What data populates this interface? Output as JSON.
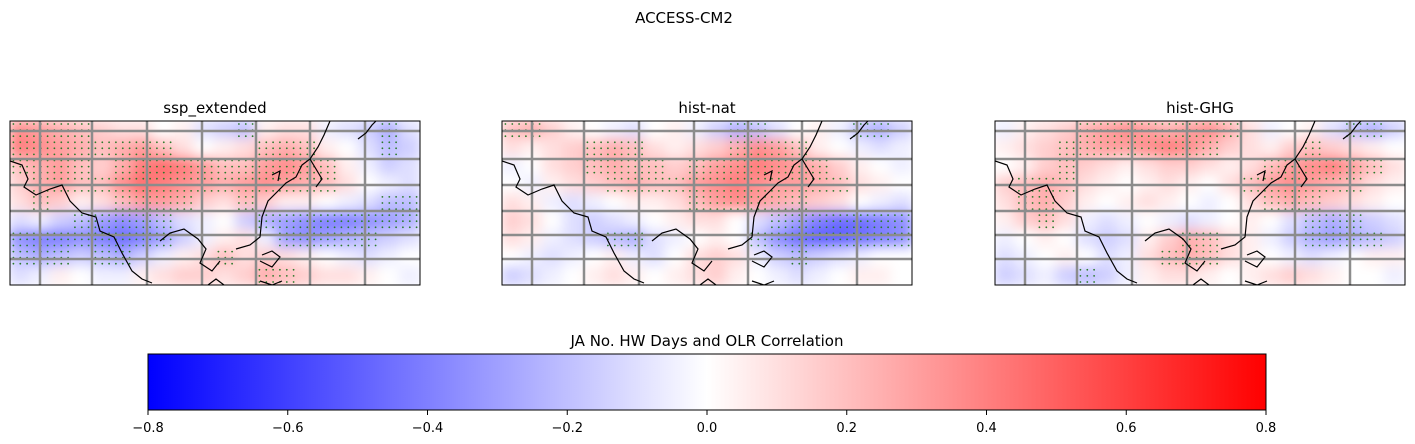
{
  "chart_data": {
    "type": "heatmap",
    "title": "ACCESS-CM2",
    "colorbar": {
      "label": "JA No. HW Days and OLR Correlation",
      "cmap": "bwr",
      "range": [
        -0.8,
        0.8
      ],
      "ticks": [
        "−0.8",
        "−0.6",
        "−0.4",
        "−0.2",
        "0.0",
        "0.2",
        "0.4",
        "0.6",
        "0.8"
      ],
      "colors": {
        "low": "#0000ff",
        "mid": "#ffffff",
        "high": "#ff0000"
      }
    },
    "stipple_color": "#2a7a2a",
    "coastline_color": "#000000",
    "gridline_color": "#8c8c8c",
    "panels": [
      {
        "title": "ssp_extended",
        "values": [
          [
            0.35,
            0.3,
            0.25,
            0.2,
            0.15,
            0.1,
            0.1,
            0.0,
            0.05,
            -0.1,
            -0.15,
            -0.2,
            0.05,
            0.1,
            0.1,
            -0.05,
            -0.1,
            -0.15,
            -0.25,
            -0.1
          ],
          [
            0.4,
            0.35,
            0.3,
            0.25,
            0.2,
            0.25,
            0.3,
            0.2,
            0.1,
            0.0,
            0.05,
            0.1,
            0.2,
            0.25,
            0.2,
            0.05,
            0.0,
            -0.1,
            -0.2,
            -0.15
          ],
          [
            0.2,
            0.25,
            0.3,
            0.2,
            0.15,
            0.25,
            0.4,
            0.45,
            0.4,
            0.3,
            0.2,
            0.2,
            0.3,
            0.35,
            0.3,
            0.2,
            0.05,
            -0.05,
            -0.15,
            -0.1
          ],
          [
            0.15,
            0.25,
            0.3,
            0.2,
            0.2,
            0.35,
            0.45,
            0.4,
            0.35,
            0.3,
            0.25,
            0.3,
            0.35,
            0.3,
            0.25,
            0.2,
            0.1,
            0.0,
            -0.05,
            -0.1
          ],
          [
            0.1,
            0.2,
            0.15,
            0.05,
            0.1,
            0.2,
            0.3,
            0.3,
            0.25,
            0.15,
            0.1,
            0.2,
            0.15,
            0.05,
            0.05,
            0.0,
            -0.05,
            -0.1,
            -0.2,
            -0.2
          ],
          [
            -0.1,
            -0.05,
            -0.15,
            -0.2,
            -0.3,
            -0.35,
            -0.3,
            -0.2,
            -0.1,
            -0.05,
            0.0,
            -0.15,
            -0.25,
            -0.3,
            -0.35,
            -0.4,
            -0.4,
            -0.35,
            -0.3,
            -0.25
          ],
          [
            -0.35,
            -0.4,
            -0.4,
            -0.35,
            -0.4,
            -0.45,
            -0.4,
            -0.3,
            -0.15,
            -0.05,
            0.05,
            0.1,
            -0.05,
            -0.3,
            -0.35,
            -0.3,
            -0.25,
            -0.2,
            -0.15,
            -0.1
          ],
          [
            -0.2,
            -0.25,
            -0.2,
            -0.15,
            -0.2,
            -0.25,
            -0.15,
            -0.05,
            0.05,
            0.1,
            0.2,
            0.1,
            0.15,
            0.1,
            0.05,
            0.0,
            -0.05,
            -0.1,
            -0.05,
            0.0
          ],
          [
            -0.1,
            -0.05,
            0.05,
            0.0,
            -0.05,
            -0.05,
            0.05,
            0.1,
            0.15,
            0.15,
            0.1,
            0.15,
            0.25,
            0.2,
            0.15,
            0.1,
            0.1,
            0.05,
            0.0,
            -0.05
          ]
        ]
      },
      {
        "title": "hist-nat",
        "values": [
          [
            0.2,
            0.25,
            0.15,
            0.05,
            0.0,
            -0.05,
            -0.1,
            0.0,
            0.05,
            -0.05,
            -0.15,
            -0.25,
            -0.2,
            -0.1,
            0.0,
            0.05,
            -0.05,
            -0.2,
            -0.25,
            -0.15
          ],
          [
            0.1,
            0.05,
            0.1,
            0.15,
            0.2,
            0.25,
            0.2,
            0.1,
            0.05,
            0.1,
            0.15,
            0.25,
            0.35,
            0.3,
            0.2,
            0.05,
            0.0,
            -0.05,
            -0.1,
            -0.05
          ],
          [
            -0.05,
            0.0,
            0.1,
            0.15,
            0.2,
            0.25,
            0.2,
            0.2,
            0.15,
            0.2,
            0.3,
            0.35,
            0.4,
            0.35,
            0.3,
            0.25,
            0.15,
            0.05,
            0.0,
            -0.05
          ],
          [
            0.0,
            -0.05,
            0.05,
            0.1,
            0.15,
            0.2,
            0.25,
            0.2,
            0.2,
            0.3,
            0.35,
            0.4,
            0.35,
            0.3,
            0.3,
            0.25,
            0.2,
            0.1,
            0.05,
            0.0
          ],
          [
            0.1,
            0.05,
            -0.05,
            -0.1,
            -0.05,
            0.0,
            0.05,
            0.05,
            0.1,
            0.2,
            0.3,
            0.35,
            0.3,
            0.25,
            0.2,
            0.15,
            0.1,
            0.0,
            -0.05,
            -0.1
          ],
          [
            0.15,
            0.1,
            0.0,
            -0.1,
            -0.15,
            -0.1,
            -0.05,
            0.0,
            0.05,
            0.1,
            0.1,
            0.0,
            -0.1,
            -0.2,
            -0.3,
            -0.4,
            -0.45,
            -0.45,
            -0.4,
            -0.35
          ],
          [
            0.1,
            0.05,
            -0.05,
            -0.1,
            -0.15,
            -0.2,
            -0.25,
            -0.1,
            -0.05,
            0.0,
            0.05,
            0.0,
            -0.2,
            -0.35,
            -0.45,
            -0.5,
            -0.5,
            -0.45,
            -0.4,
            -0.35
          ],
          [
            0.0,
            -0.05,
            -0.1,
            -0.05,
            0.0,
            0.05,
            -0.05,
            -0.1,
            0.0,
            0.1,
            0.15,
            0.1,
            -0.05,
            -0.15,
            -0.2,
            -0.15,
            -0.1,
            -0.05,
            0.0,
            0.0
          ],
          [
            -0.15,
            -0.1,
            -0.05,
            0.0,
            0.05,
            0.1,
            0.05,
            0.0,
            0.05,
            0.1,
            0.15,
            0.05,
            0.0,
            -0.05,
            -0.1,
            -0.05,
            0.0,
            0.05,
            0.05,
            0.0
          ]
        ]
      },
      {
        "title": "hist-GHG",
        "values": [
          [
            -0.05,
            0.05,
            0.1,
            0.15,
            0.25,
            0.3,
            0.35,
            0.3,
            0.25,
            0.3,
            0.35,
            0.25,
            0.1,
            -0.05,
            0.0,
            0.05,
            -0.1,
            -0.2,
            -0.25,
            -0.15
          ],
          [
            0.05,
            0.1,
            0.15,
            0.2,
            0.25,
            0.3,
            0.3,
            0.35,
            0.4,
            0.35,
            0.25,
            0.15,
            0.1,
            0.05,
            0.15,
            0.2,
            0.15,
            0.1,
            0.05,
            0.0
          ],
          [
            0.0,
            0.05,
            0.15,
            0.2,
            0.15,
            0.1,
            0.05,
            0.1,
            0.15,
            0.15,
            0.1,
            0.05,
            0.1,
            0.2,
            0.3,
            0.35,
            0.4,
            0.3,
            0.2,
            0.1
          ],
          [
            0.15,
            0.2,
            0.25,
            0.2,
            0.1,
            0.05,
            0.0,
            0.05,
            0.1,
            0.05,
            0.0,
            0.1,
            0.2,
            0.3,
            0.35,
            0.3,
            0.25,
            0.2,
            0.1,
            0.05
          ],
          [
            0.1,
            0.2,
            0.25,
            0.15,
            0.05,
            0.0,
            0.05,
            0.1,
            0.05,
            0.0,
            -0.05,
            0.0,
            0.1,
            0.2,
            0.25,
            0.2,
            0.15,
            0.1,
            0.05,
            0.0
          ],
          [
            0.05,
            0.15,
            0.2,
            0.1,
            -0.05,
            -0.1,
            -0.05,
            0.0,
            -0.05,
            -0.1,
            -0.05,
            0.0,
            0.05,
            0.0,
            -0.1,
            -0.2,
            -0.25,
            -0.2,
            -0.15,
            -0.1
          ],
          [
            -0.05,
            0.0,
            0.05,
            0.0,
            -0.1,
            -0.15,
            -0.1,
            0.05,
            0.15,
            0.25,
            0.2,
            0.1,
            0.05,
            -0.05,
            -0.15,
            -0.25,
            -0.3,
            -0.25,
            -0.2,
            -0.15
          ],
          [
            -0.1,
            -0.05,
            0.0,
            0.05,
            0.0,
            -0.1,
            -0.05,
            0.1,
            0.2,
            0.25,
            0.2,
            0.1,
            0.05,
            0.0,
            -0.05,
            -0.1,
            -0.05,
            0.0,
            0.05,
            0.05
          ],
          [
            -0.15,
            -0.1,
            -0.05,
            -0.15,
            -0.2,
            -0.15,
            -0.05,
            0.05,
            0.1,
            0.1,
            0.05,
            0.0,
            0.05,
            0.1,
            0.15,
            0.1,
            0.05,
            0.0,
            0.0,
            -0.05
          ]
        ]
      }
    ]
  }
}
